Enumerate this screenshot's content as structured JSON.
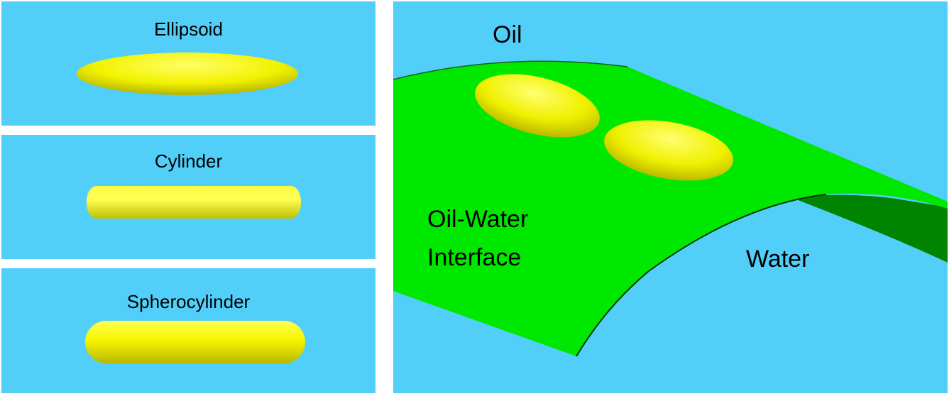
{
  "shapes": [
    {
      "label": "Ellipsoid",
      "icon": "ellipsoid-particle"
    },
    {
      "label": "Cylinder",
      "icon": "cylinder-particle"
    },
    {
      "label": "Spherocylinder",
      "icon": "spherocylinder-particle"
    }
  ],
  "scene": {
    "oil_label": "Oil",
    "interface_label_line1": "Oil-Water",
    "interface_label_line2": "Interface",
    "water_label": "Water"
  },
  "colors": {
    "background": "#52cff9",
    "particle": "#f4f400",
    "interface_front": "#00e800",
    "interface_back": "#008400"
  }
}
